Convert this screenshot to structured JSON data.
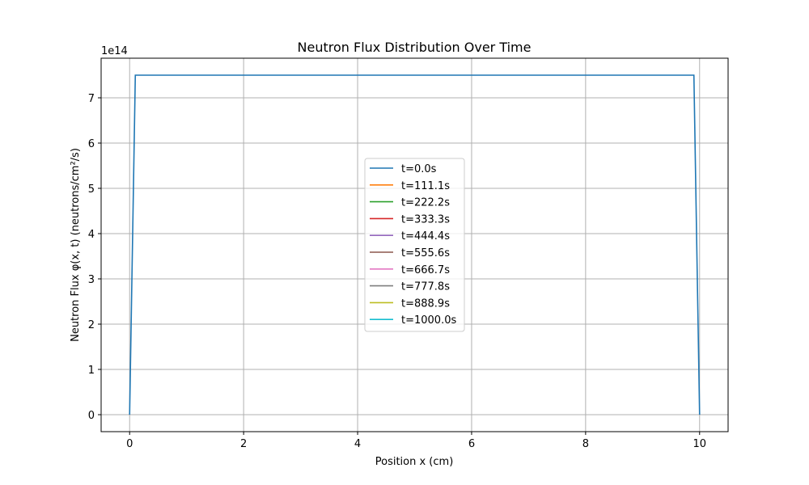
{
  "chart_data": {
    "type": "line",
    "title": "Neutron Flux Distribution Over Time",
    "xlabel": "Position x (cm)",
    "ylabel": "Neutron Flux φ(x, t) (neutrons/cm²/s)",
    "y_offset_text": "1e14",
    "xlim": [
      -0.5,
      10.5
    ],
    "ylim": [
      -0.375,
      7.875
    ],
    "y_scale_factor": 100000000000000.0,
    "xticks": [
      0,
      2,
      4,
      6,
      8,
      10
    ],
    "yticks": [
      0,
      1,
      2,
      3,
      4,
      5,
      6,
      7
    ],
    "grid": true,
    "legend_position": "center",
    "series": [
      {
        "name": "t=0.0s",
        "color": "#1f77b4",
        "x": [
          0,
          0.1,
          9.9,
          10
        ],
        "y": [
          0,
          7.5,
          7.5,
          0
        ]
      },
      {
        "name": "t=111.1s",
        "color": "#ff7f0e",
        "x": [],
        "y": []
      },
      {
        "name": "t=222.2s",
        "color": "#2ca02c",
        "x": [],
        "y": []
      },
      {
        "name": "t=333.3s",
        "color": "#d62728",
        "x": [],
        "y": []
      },
      {
        "name": "t=444.4s",
        "color": "#9467bd",
        "x": [],
        "y": []
      },
      {
        "name": "t=555.6s",
        "color": "#8c564b",
        "x": [],
        "y": []
      },
      {
        "name": "t=666.7s",
        "color": "#e377c2",
        "x": [],
        "y": []
      },
      {
        "name": "t=777.8s",
        "color": "#7f7f7f",
        "x": [],
        "y": []
      },
      {
        "name": "t=888.9s",
        "color": "#bcbd22",
        "x": [],
        "y": []
      },
      {
        "name": "t=1000.0s",
        "color": "#17becf",
        "x": [],
        "y": []
      }
    ]
  }
}
